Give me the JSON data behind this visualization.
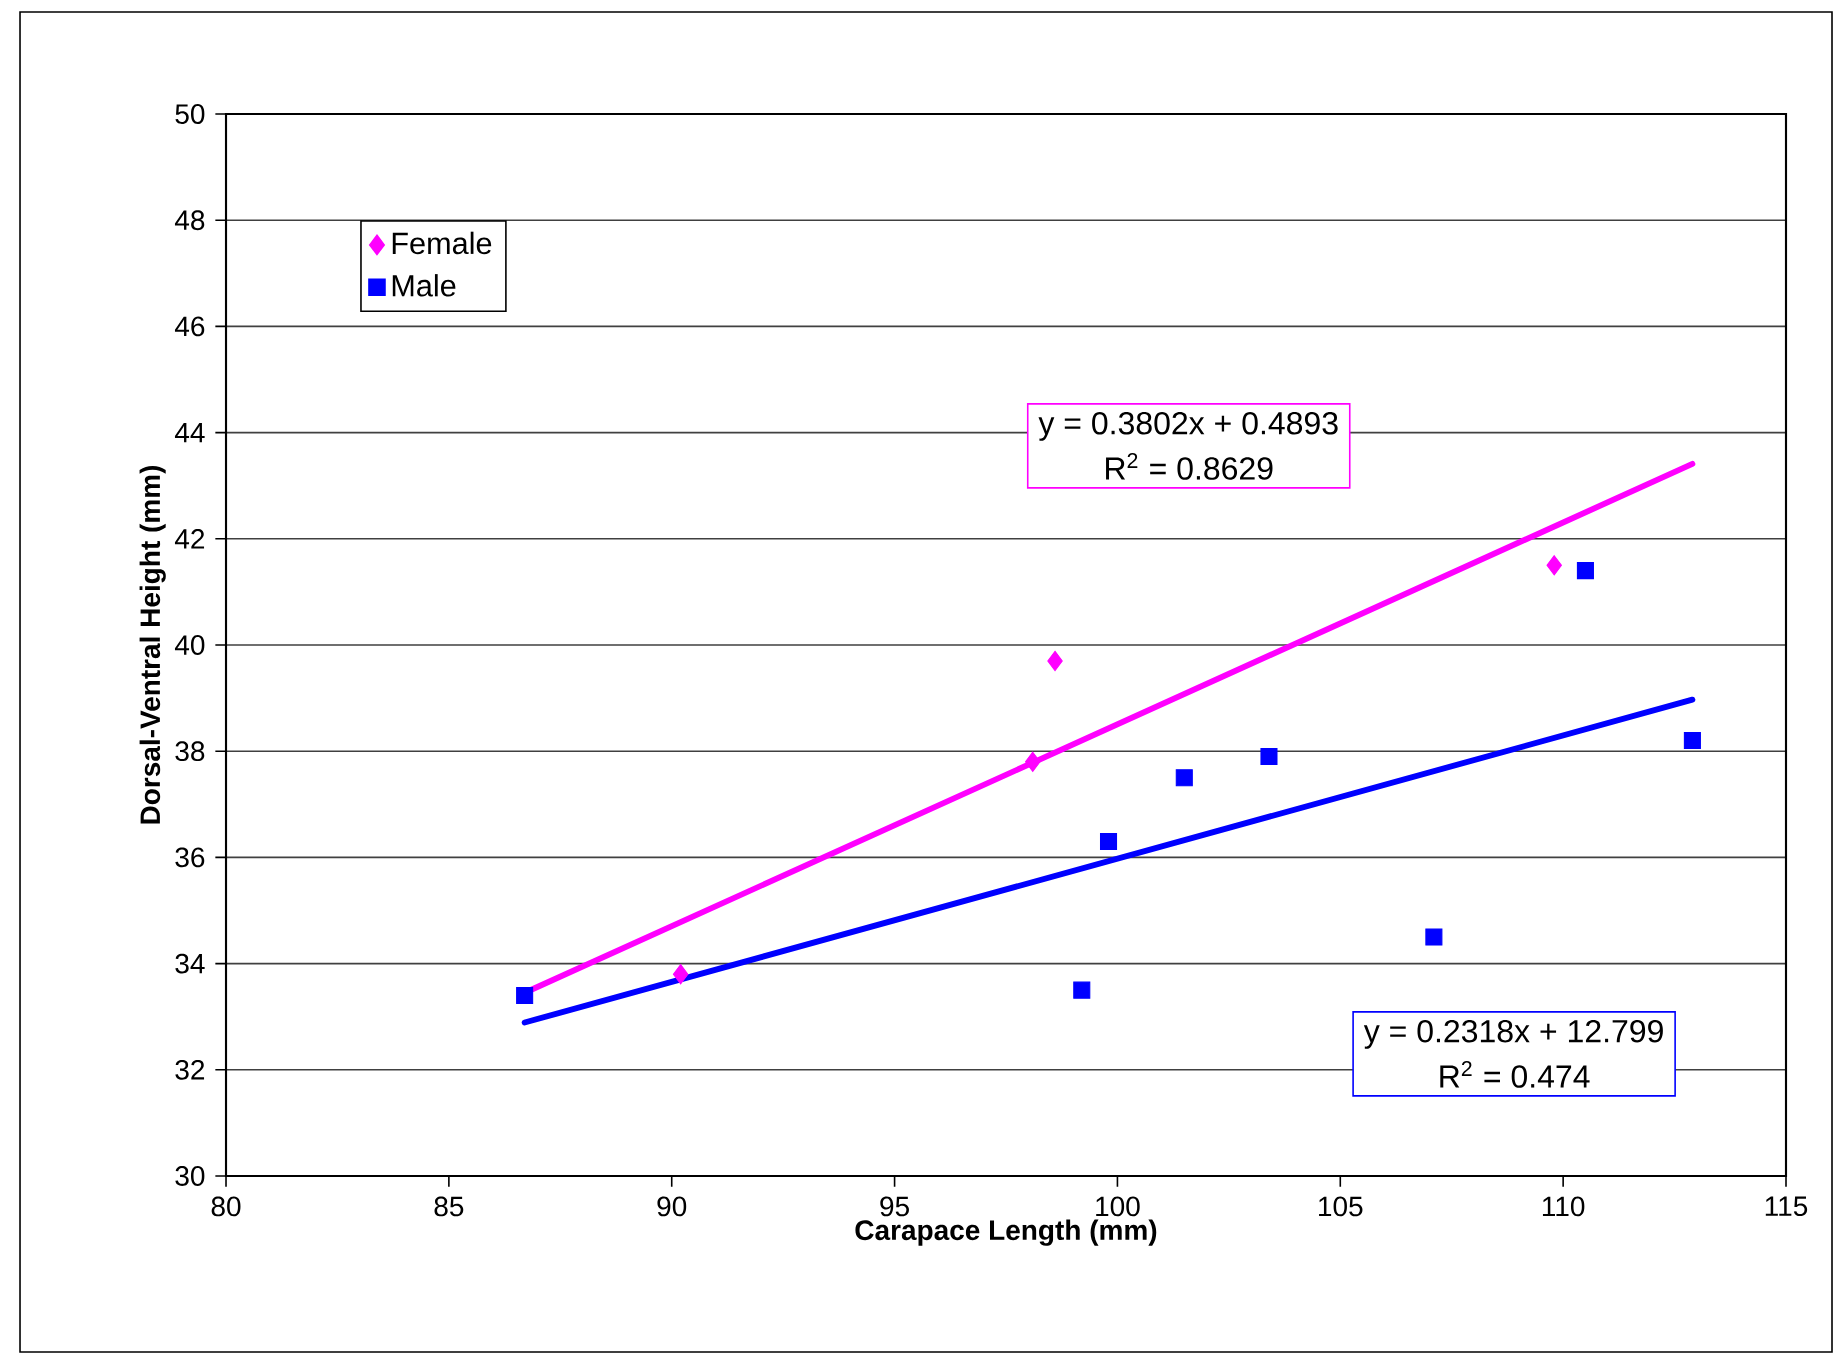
{
  "chart_data": {
    "type": "scatter",
    "xlabel": "Carapace Length (mm)",
    "ylabel": "Dorsal-Ventral Height (mm)",
    "xlim": [
      80,
      115
    ],
    "xticks": [
      80,
      85,
      90,
      95,
      100,
      105,
      110,
      115
    ],
    "ylim": [
      30,
      50
    ],
    "yticks": [
      30,
      32,
      34,
      36,
      38,
      40,
      42,
      44,
      46,
      48,
      50
    ],
    "grid": "y",
    "legend": "top left",
    "series": [
      {
        "name": "Female",
        "color": "#ff00ff",
        "marker": "diamond",
        "x": [
          90.2,
          98.1,
          98.6,
          109.8
        ],
        "values": [
          33.8,
          37.8,
          39.7,
          41.5
        ]
      },
      {
        "name": "Male",
        "color": "#0000ff",
        "marker": "square",
        "x": [
          86.7,
          99.2,
          99.8,
          101.5,
          103.4,
          107.1,
          110.5,
          112.9
        ],
        "values": [
          33.4,
          33.5,
          36.3,
          37.5,
          37.9,
          34.5,
          41.4,
          38.2
        ]
      },
      {
        "type": "line",
        "color": "#ff00ff",
        "marker": "none",
        "x": [
          86.7,
          112.9
        ],
        "values": [
          33.45,
          43.41
        ]
      },
      {
        "type": "line",
        "color": "#0000ff",
        "marker": "none",
        "x": [
          86.7,
          112.9
        ],
        "values": [
          32.89,
          38.97
        ]
      }
    ],
    "annotations": [
      "y = 0.3802x + 0.4893",
      "R$^{2}$ = 0.8629",
      "y = 0.2318x + 12.799",
      "R$^{2}$ = 0.474"
    ]
  }
}
